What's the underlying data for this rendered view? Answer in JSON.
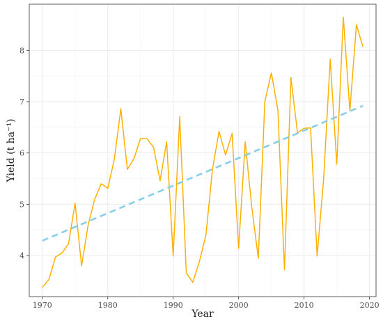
{
  "chart_data": {
    "type": "line",
    "xlabel": "Year",
    "ylabel": "Yield (t ha⁻¹)",
    "xlim": [
      1968,
      2021
    ],
    "ylim": [
      3.2,
      8.9
    ],
    "x_ticks": [
      1970,
      1980,
      1990,
      2000,
      2010,
      2020
    ],
    "y_ticks": [
      4,
      5,
      6,
      7,
      8
    ],
    "grid": true,
    "series": [
      {
        "kind": "observed",
        "color": "#FFB000",
        "x": [
          1970,
          1971,
          1972,
          1973,
          1974,
          1975,
          1976,
          1977,
          1978,
          1979,
          1980,
          1981,
          1982,
          1983,
          1984,
          1985,
          1986,
          1987,
          1988,
          1989,
          1990,
          1991,
          1992,
          1993,
          1994,
          1995,
          1996,
          1997,
          1998,
          1999,
          2000,
          2001,
          2002,
          2003,
          2004,
          2005,
          2006,
          2007,
          2008,
          2009,
          2010,
          2011,
          2012,
          2013,
          2014,
          2015,
          2016,
          2017,
          2018,
          2019
        ],
        "y": [
          3.38,
          3.53,
          3.97,
          4.05,
          4.23,
          5.02,
          3.8,
          4.6,
          5.1,
          5.4,
          5.31,
          5.88,
          6.86,
          5.68,
          5.89,
          6.28,
          6.28,
          6.11,
          5.46,
          6.22,
          3.99,
          6.71,
          3.66,
          3.48,
          3.88,
          4.4,
          5.68,
          6.42,
          5.96,
          6.38,
          4.14,
          6.22,
          4.95,
          3.95,
          7.0,
          7.56,
          6.83,
          3.72,
          7.47,
          6.39,
          6.48,
          6.49,
          3.99,
          5.5,
          7.83,
          5.78,
          8.65,
          6.82,
          8.5,
          8.07
        ]
      },
      {
        "kind": "trend",
        "color": "#87CEEB",
        "dashed": true,
        "x": [
          1970,
          2019
        ],
        "y": [
          4.29,
          6.92
        ]
      }
    ]
  }
}
